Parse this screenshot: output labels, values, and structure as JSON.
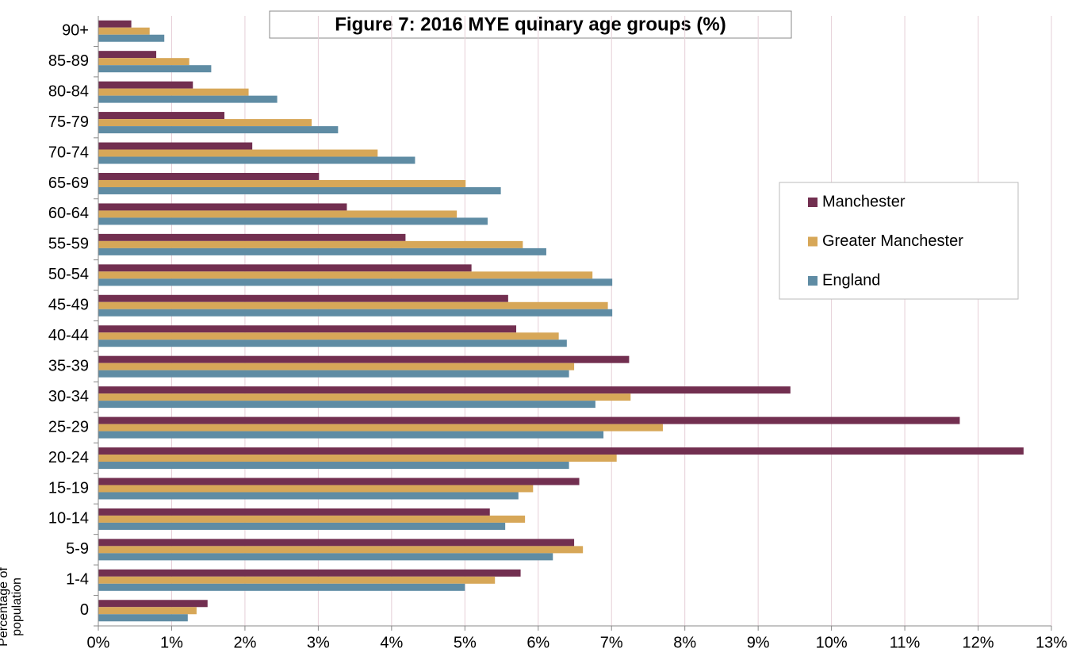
{
  "chart_data": {
    "type": "hbar",
    "title": "Figure 7: 2016 MYE quinary age groups (%)",
    "y_label": "Percentage of population",
    "categories": [
      "0",
      "1-4",
      "5-9",
      "10-14",
      "15-19",
      "20-24",
      "25-29",
      "30-34",
      "35-39",
      "40-44",
      "45-49",
      "50-54",
      "55-59",
      "60-64",
      "65-69",
      "70-74",
      "75-79",
      "80-84",
      "85-89",
      "90+"
    ],
    "series": [
      {
        "name": "Manchester",
        "color": "#722f50",
        "values": [
          1.49,
          5.76,
          6.49,
          5.34,
          6.56,
          12.62,
          11.75,
          9.44,
          7.24,
          5.7,
          5.59,
          5.09,
          4.19,
          3.39,
          3.01,
          2.1,
          1.72,
          1.29,
          0.79,
          0.45
        ]
      },
      {
        "name": "Greater Manchester",
        "color": "#d7a758",
        "values": [
          1.34,
          5.41,
          6.61,
          5.82,
          5.93,
          7.07,
          7.7,
          7.26,
          6.49,
          6.28,
          6.95,
          6.74,
          5.79,
          4.89,
          5.01,
          3.81,
          2.91,
          2.05,
          1.24,
          0.7
        ]
      },
      {
        "name": "England",
        "color": "#5f8ca4",
        "values": [
          1.22,
          5.0,
          6.2,
          5.55,
          5.73,
          6.42,
          6.89,
          6.78,
          6.42,
          6.39,
          7.01,
          7.01,
          6.11,
          5.31,
          5.49,
          4.32,
          3.27,
          2.44,
          1.54,
          0.9
        ]
      }
    ],
    "xlim": [
      0,
      13
    ],
    "xticks": [
      {
        "value": 0,
        "label": "0%"
      },
      {
        "value": 1,
        "label": "1%"
      },
      {
        "value": 2,
        "label": "2%"
      },
      {
        "value": 3,
        "label": "3%"
      },
      {
        "value": 4,
        "label": "4%"
      },
      {
        "value": 5,
        "label": "5%"
      },
      {
        "value": 6,
        "label": "6%"
      },
      {
        "value": 7,
        "label": "7%"
      },
      {
        "value": 8,
        "label": "8%"
      },
      {
        "value": 9,
        "label": "9%"
      },
      {
        "value": 10,
        "label": "10%"
      },
      {
        "value": 11,
        "label": "11%"
      },
      {
        "value": 12,
        "label": "12%"
      },
      {
        "value": 13,
        "label": "13%"
      }
    ],
    "grid": true,
    "grid_color": "#e6cfd7",
    "legend_position": "right"
  }
}
